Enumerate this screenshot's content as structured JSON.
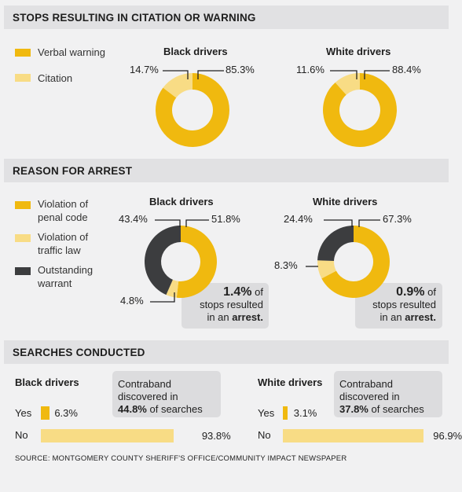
{
  "colors": {
    "yellow": "#f0b90f",
    "pale_yellow": "#f8dc85",
    "dark": "#3c3d3f",
    "header_bg": "#e1e1e3",
    "callout_bg": "#dcdcde"
  },
  "sections": {
    "citation": "STOPS RESULTING IN CITATION OR WARNING",
    "arrest": "REASON FOR ARREST",
    "searches": "SEARCHES CONDUCTED"
  },
  "citation_legend": [
    "Verbal warning",
    "Citation"
  ],
  "arrest_legend": [
    {
      "line1": "Violation of",
      "line2": "penal code"
    },
    {
      "line1": "Violation of",
      "line2": "traffic law"
    },
    {
      "line1": "Outstanding",
      "line2": "warrant"
    }
  ],
  "chart_data": [
    {
      "type": "pie",
      "title": "Black drivers",
      "section": "STOPS RESULTING IN CITATION OR WARNING",
      "labels": [
        "Verbal warning",
        "Citation"
      ],
      "values": [
        85.3,
        14.7
      ],
      "value_labels": [
        "85.3%",
        "14.7%"
      ]
    },
    {
      "type": "pie",
      "title": "White drivers",
      "section": "STOPS RESULTING IN CITATION OR WARNING",
      "labels": [
        "Verbal warning",
        "Citation"
      ],
      "values": [
        88.4,
        11.6
      ],
      "value_labels": [
        "88.4%",
        "11.6%"
      ]
    },
    {
      "type": "pie",
      "title": "Black drivers",
      "section": "REASON FOR ARREST",
      "labels": [
        "Violation of penal code",
        "Violation of traffic law",
        "Outstanding warrant"
      ],
      "values": [
        51.8,
        4.8,
        43.4
      ],
      "value_labels": [
        "51.8%",
        "4.8%",
        "43.4%"
      ],
      "callout": {
        "value": "1.4%",
        "text1": " of",
        "text2": "stops resulted",
        "text3": "in an ",
        "bold3": "arrest."
      }
    },
    {
      "type": "pie",
      "title": "White drivers",
      "section": "REASON FOR ARREST",
      "labels": [
        "Violation of penal code",
        "Violation of traffic law",
        "Outstanding warrant"
      ],
      "values": [
        67.3,
        8.3,
        24.4
      ],
      "value_labels": [
        "67.3%",
        "8.3%",
        "24.4%"
      ],
      "callout": {
        "value": "0.9%",
        "text1": " of",
        "text2": "stops resulted",
        "text3": "in an ",
        "bold3": "arrest."
      }
    },
    {
      "type": "bar",
      "title": "Black drivers",
      "section": "SEARCHES CONDUCTED",
      "categories": [
        "Yes",
        "No"
      ],
      "values": [
        6.3,
        93.8
      ],
      "value_labels": [
        "6.3%",
        "93.8%"
      ],
      "callout": {
        "line1": "Contraband",
        "line2": "discovered in",
        "bold": "44.8%",
        "rest": " of searches"
      }
    },
    {
      "type": "bar",
      "title": "White drivers",
      "section": "SEARCHES CONDUCTED",
      "categories": [
        "Yes",
        "No"
      ],
      "values": [
        3.1,
        96.9
      ],
      "value_labels": [
        "3.1%",
        "96.9%"
      ],
      "callout": {
        "line1": "Contraband",
        "line2": "discovered in",
        "bold": "37.8%",
        "rest": " of searches"
      }
    }
  ],
  "source": "SOURCE: MONTGOMERY COUNTY SHERIFF'S OFFICE/COMMUNITY IMPACT NEWSPAPER"
}
